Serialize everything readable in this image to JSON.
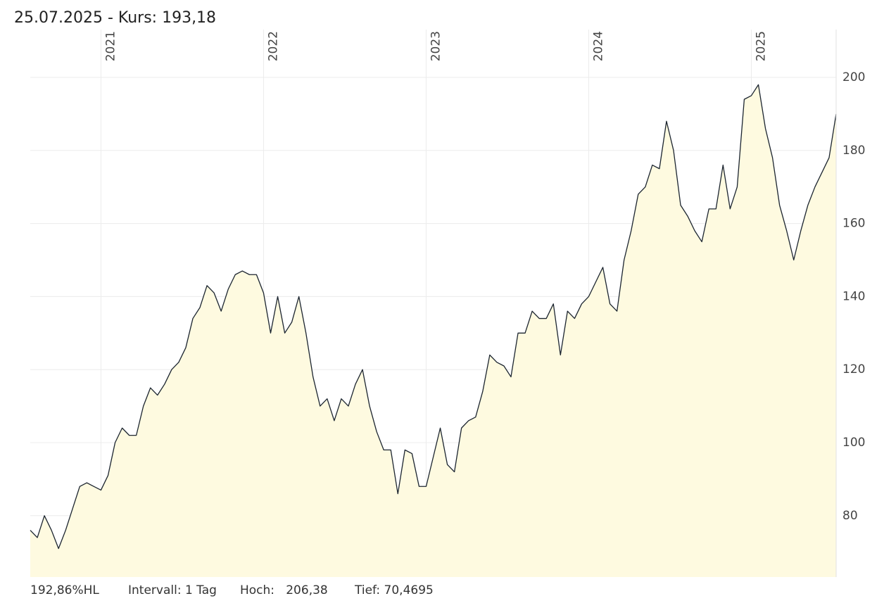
{
  "chart_data": {
    "type": "area",
    "title": "25.07.2025  -  Kurs: 193,18",
    "footer": [
      "192,86%HL",
      "Intervall: 1 Tag",
      "Hoch:   206,38",
      "Tief: 70,4695"
    ],
    "categories": [
      null,
      null,
      null,
      null,
      null,
      null,
      null,
      null,
      null,
      null,
      "2021",
      null,
      null,
      null,
      null,
      null,
      null,
      null,
      null,
      null,
      null,
      null,
      null,
      null,
      null,
      null,
      null,
      null,
      null,
      null,
      null,
      null,
      null,
      "2022",
      null,
      null,
      null,
      null,
      null,
      null,
      null,
      null,
      null,
      null,
      null,
      null,
      null,
      null,
      null,
      null,
      null,
      null,
      null,
      null,
      null,
      null,
      "2023",
      null,
      null,
      null,
      null,
      null,
      null,
      null,
      null,
      null,
      null,
      null,
      null,
      null,
      null,
      null,
      null,
      null,
      null,
      null,
      null,
      null,
      null,
      "2024",
      null,
      null,
      null,
      null,
      null,
      null,
      null,
      null,
      null,
      null,
      null,
      null,
      null,
      null,
      null,
      null,
      null,
      null,
      null,
      null,
      null,
      null,
      "2025",
      null,
      null,
      null,
      null,
      null,
      null,
      null,
      null,
      null,
      null,
      null,
      null
    ],
    "values": [
      76,
      74,
      80,
      76,
      71,
      76,
      82,
      88,
      89,
      88,
      87,
      91,
      100,
      104,
      102,
      102,
      110,
      115,
      113,
      116,
      120,
      122,
      126,
      134,
      137,
      143,
      141,
      136,
      142,
      146,
      147,
      146,
      146,
      141,
      130,
      140,
      130,
      133,
      140,
      130,
      118,
      110,
      112,
      106,
      112,
      110,
      116,
      120,
      110,
      103,
      98,
      98,
      86,
      98,
      97,
      88,
      88,
      96,
      104,
      94,
      92,
      104,
      106,
      107,
      114,
      124,
      122,
      121,
      118,
      130,
      130,
      136,
      134,
      134,
      138,
      124,
      136,
      134,
      138,
      140,
      144,
      148,
      138,
      136,
      150,
      158,
      168,
      170,
      176,
      175,
      188,
      180,
      165,
      162,
      158,
      155,
      164,
      164,
      176,
      164,
      170,
      194,
      195,
      198,
      186,
      178,
      165,
      158,
      150,
      158,
      165,
      170,
      174,
      178,
      190
    ],
    "color": "#1c2530",
    "fill": "#fefae0",
    "ylim": [
      63.2,
      213.1
    ],
    "yticks": [
      80,
      100,
      120,
      140,
      160,
      180,
      200
    ],
    "grid": true
  }
}
